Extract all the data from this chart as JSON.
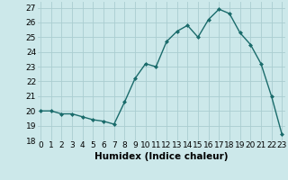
{
  "x": [
    0,
    1,
    2,
    3,
    4,
    5,
    6,
    7,
    8,
    9,
    10,
    11,
    12,
    13,
    14,
    15,
    16,
    17,
    18,
    19,
    20,
    21,
    22,
    23
  ],
  "y": [
    20.0,
    20.0,
    19.8,
    19.8,
    19.6,
    19.4,
    19.3,
    19.1,
    20.6,
    22.2,
    23.2,
    23.0,
    24.7,
    25.4,
    25.8,
    25.0,
    26.2,
    26.9,
    26.6,
    25.3,
    24.5,
    23.2,
    21.0,
    18.4
  ],
  "line_color": "#1a6b6b",
  "marker": "D",
  "marker_size": 2.0,
  "bg_color": "#cce8ea",
  "grid_color": "#aacdd0",
  "xlabel": "Humidex (Indice chaleur)",
  "ylim": [
    18.0,
    27.4
  ],
  "yticks": [
    18,
    19,
    20,
    21,
    22,
    23,
    24,
    25,
    26,
    27
  ],
  "xticks": [
    0,
    1,
    2,
    3,
    4,
    5,
    6,
    7,
    8,
    9,
    10,
    11,
    12,
    13,
    14,
    15,
    16,
    17,
    18,
    19,
    20,
    21,
    22,
    23
  ],
  "xlim": [
    -0.3,
    23.3
  ],
  "xlabel_fontsize": 7.5,
  "tick_fontsize": 6.5,
  "linewidth": 1.0
}
